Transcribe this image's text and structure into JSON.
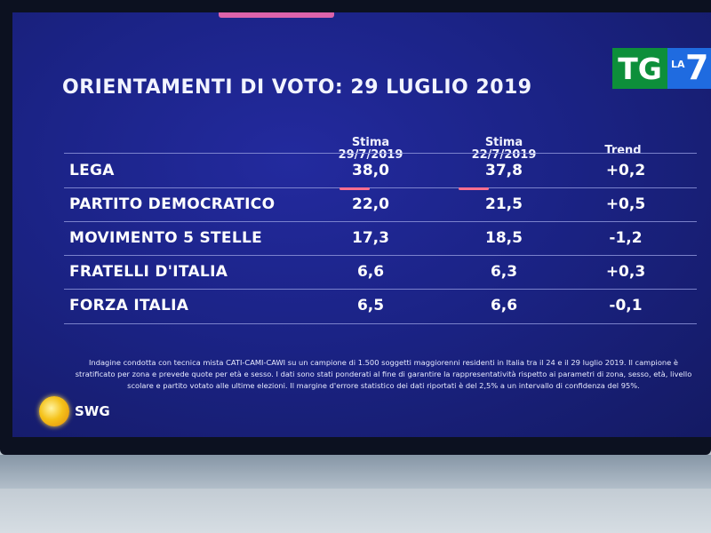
{
  "title": "ORIENTAMENTI DI VOTO: 29 LUGLIO 2019",
  "logo": {
    "tg": "TG",
    "la": "LA",
    "seven": "7"
  },
  "columns": {
    "col1": {
      "line1": "Stima",
      "line2": "29/7/2019"
    },
    "col2": {
      "line1": "Stima",
      "line2": "22/7/2019"
    },
    "col3": {
      "line1": "Trend"
    }
  },
  "rows": [
    {
      "party": "LEGA",
      "estimate_current": "38,0",
      "estimate_previous": "37,8",
      "trend": "+0,2"
    },
    {
      "party": "PARTITO DEMOCRATICO",
      "estimate_current": "22,0",
      "estimate_previous": "21,5",
      "trend": "+0,5"
    },
    {
      "party": "MOVIMENTO 5 STELLE",
      "estimate_current": "17,3",
      "estimate_previous": "18,5",
      "trend": "-1,2"
    },
    {
      "party": "FRATELLI D'ITALIA",
      "estimate_current": "6,6",
      "estimate_previous": "6,3",
      "trend": "+0,3"
    },
    {
      "party": "FORZA ITALIA",
      "estimate_current": "6,5",
      "estimate_previous": "6,6",
      "trend": "-0,1"
    }
  ],
  "footnote": {
    "line1": "Indagine condotta con tecnica mista CATI-CAMI-CAWI su un campione di 1.500 soggetti maggiorenni residenti in Italia tra il 24 e il 29 luglio 2019. Il campione è",
    "line2": "stratificato per zona e prevede quote per età e sesso. I dati sono stati ponderati al fine di garantire la rappresentatività rispetto ai parametri di zona, sesso, età, livello",
    "line3": "scolare e partito votato alle ultime elezioni. Il margine d'errore statistico dei dati riportati è del 2,5% a un intervallo di confidenza del 95%."
  },
  "source": "SWG",
  "colors": {
    "screen": "#1b2386",
    "tg_green": "#0d8f3a",
    "la7_blue": "#1f6be0",
    "text": "#ffffff"
  }
}
